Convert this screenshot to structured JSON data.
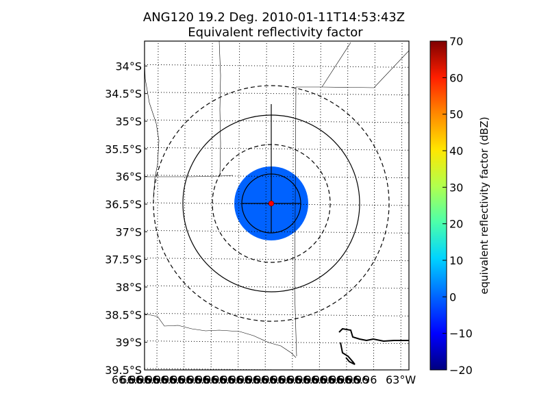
{
  "chart_data": {
    "type": "map",
    "title": "ANG120 19.2 Deg. 2010-01-11T14:53:43Z",
    "subtitle": "Equivalent reflectivity factor",
    "ylabel_ticks": [
      "34°S",
      "34.5°S",
      "35°S",
      "35.5°S",
      "36°S",
      "36.5°S",
      "37°S",
      "37.5°S",
      "38°S",
      "38.5°S",
      "39°S",
      "39.5°S"
    ],
    "y_values": [
      -34,
      -34.5,
      -35,
      -35.5,
      -36,
      -36.5,
      -37,
      -37.5,
      -38,
      -38.5,
      -39,
      -39.5
    ],
    "ylim": [
      -39.5,
      -33.55
    ],
    "x_tick_labels_overlapping": [
      "66.96",
      "66.96",
      "66.96",
      "66.96",
      "66.96",
      "66.96",
      "66.96",
      "66.96",
      "66.96",
      "66.96",
      "66.96",
      "66.96",
      "66.96",
      "66.96",
      "66.96",
      "66.96",
      "66.96",
      "66.96",
      "66.96",
      "66.96",
      "66.96",
      "66.96",
      "66.96",
      "66.96",
      "66.96",
      "66.96",
      "66.96",
      "66.96",
      "66.96"
    ],
    "x_tick_last": "63°W",
    "colorbar": {
      "label": "equivalent reflectivity factor (dBZ)",
      "ticks": [
        -20,
        -10,
        0,
        10,
        20,
        30,
        40,
        50,
        60,
        70
      ],
      "range": [
        -20,
        70
      ],
      "colormap": "jet"
    },
    "radar": {
      "center_lat": -36.5,
      "echo_value_dbz": -2,
      "echo_color": "#0062ff",
      "marker_color": "#ff0000"
    },
    "grid": true
  }
}
